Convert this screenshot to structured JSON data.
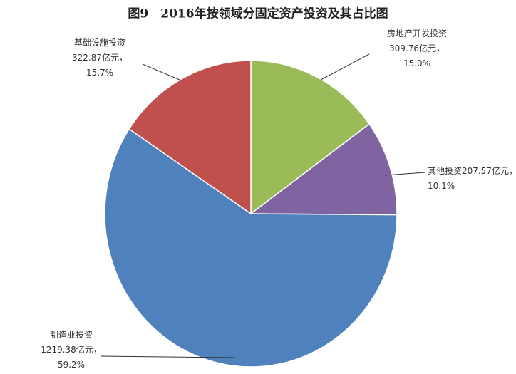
{
  "chart_data": {
    "type": "pie",
    "title": "图9　2016年按领域分固定资产投资及其占比图",
    "categories": [
      "房地产开发投资",
      "其他投资",
      "制造业投资",
      "基础设施投资"
    ],
    "values": [
      309.76,
      207.57,
      1219.38,
      322.87
    ],
    "value_labels": [
      "309.76亿元，",
      "207.57亿元，",
      "1219.38亿元，",
      "322.87亿元，"
    ],
    "percents": [
      15.0,
      10.1,
      59.2,
      15.7
    ],
    "percent_labels": [
      "15.0%",
      "10.1%",
      "59.2%",
      "15.7%"
    ],
    "colors": [
      "#9bbb59",
      "#8064a2",
      "#4f81bd",
      "#c0504d"
    ]
  }
}
